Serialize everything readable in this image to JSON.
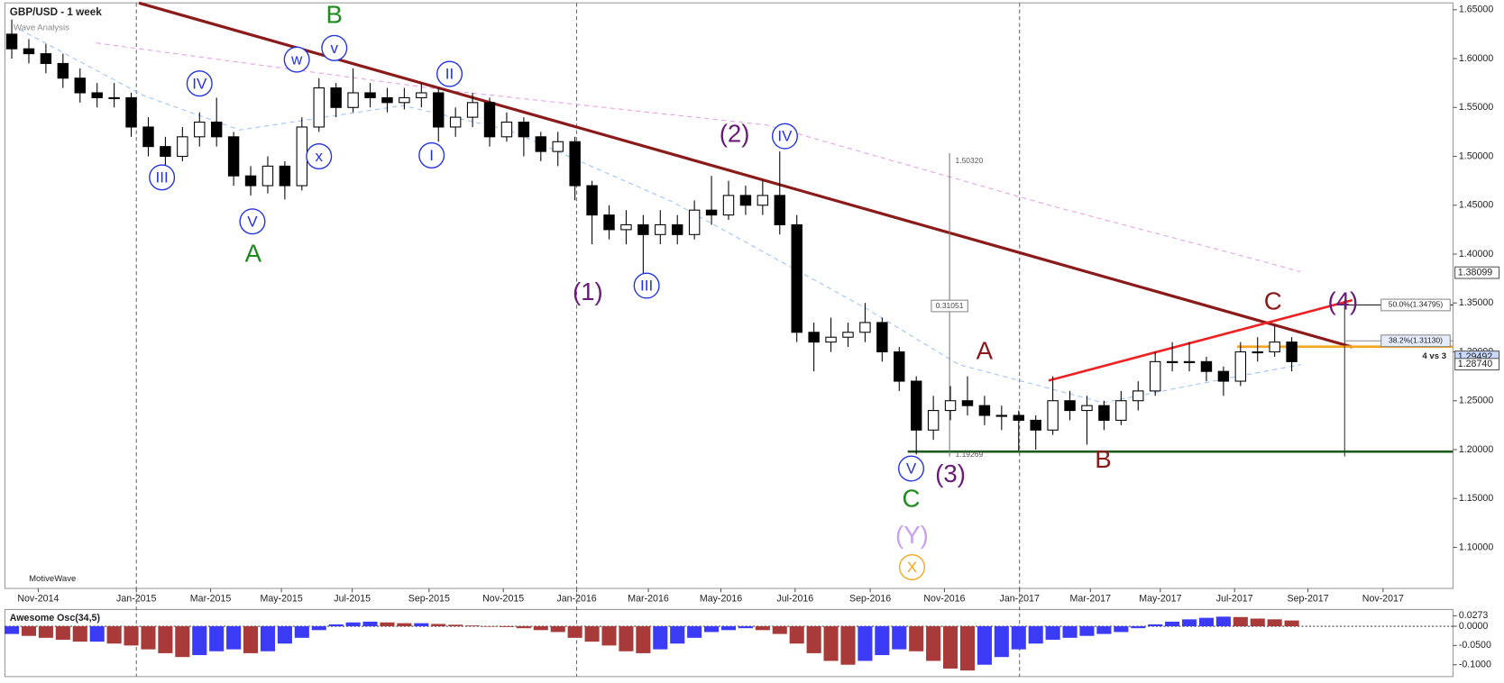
{
  "chart_data": {
    "type": "candlestick",
    "title": "GBP/USD - 1 week",
    "subtitle": "Wave Analysis",
    "watermark": "MotiveWave",
    "x": [
      0,
      2,
      4,
      6,
      8,
      10,
      12,
      14,
      16,
      18,
      20,
      22,
      24,
      26,
      28,
      30,
      32,
      34,
      36,
      38,
      40,
      42,
      44,
      46,
      48,
      50,
      52,
      54,
      56,
      58,
      60,
      62,
      64,
      66,
      68,
      70,
      72,
      74,
      76,
      78,
      80,
      82,
      84,
      86,
      88,
      90,
      92,
      94,
      96,
      98,
      100,
      102,
      104,
      106,
      108,
      110,
      112,
      114,
      116,
      118,
      120,
      122,
      124,
      126,
      128,
      130,
      132,
      134,
      136,
      138,
      140,
      142,
      144,
      146,
      148,
      150
    ],
    "open": [
      1.625,
      1.61,
      1.605,
      1.595,
      1.58,
      1.565,
      1.56,
      1.56,
      1.53,
      1.51,
      1.5,
      1.52,
      1.535,
      1.52,
      1.48,
      1.47,
      1.49,
      1.47,
      1.53,
      1.57,
      1.55,
      1.565,
      1.56,
      1.555,
      1.56,
      1.565,
      1.53,
      1.54,
      1.555,
      1.52,
      1.535,
      1.52,
      1.505,
      1.515,
      1.47,
      1.44,
      1.425,
      1.43,
      1.42,
      1.43,
      1.42,
      1.445,
      1.44,
      1.46,
      1.45,
      1.46,
      1.43,
      1.32,
      1.31,
      1.315,
      1.32,
      1.33,
      1.3,
      1.27,
      1.22,
      1.24,
      1.25,
      1.245,
      1.235,
      1.235,
      1.23,
      1.22,
      1.25,
      1.24,
      1.245,
      1.23,
      1.25,
      1.26,
      1.29,
      1.29,
      1.29,
      1.28,
      1.27,
      1.3,
      1.3,
      1.31
    ],
    "high": [
      1.64,
      1.62,
      1.615,
      1.605,
      1.59,
      1.575,
      1.575,
      1.565,
      1.54,
      1.52,
      1.53,
      1.545,
      1.56,
      1.525,
      1.49,
      1.5,
      1.495,
      1.54,
      1.58,
      1.575,
      1.59,
      1.575,
      1.57,
      1.57,
      1.575,
      1.57,
      1.55,
      1.565,
      1.56,
      1.545,
      1.54,
      1.525,
      1.525,
      1.52,
      1.475,
      1.45,
      1.445,
      1.44,
      1.445,
      1.44,
      1.455,
      1.48,
      1.475,
      1.47,
      1.475,
      1.505,
      1.44,
      1.33,
      1.335,
      1.33,
      1.35,
      1.335,
      1.305,
      1.275,
      1.255,
      1.265,
      1.275,
      1.255,
      1.245,
      1.24,
      1.235,
      1.275,
      1.26,
      1.255,
      1.25,
      1.26,
      1.27,
      1.3,
      1.31,
      1.31,
      1.295,
      1.285,
      1.31,
      1.315,
      1.327,
      1.315
    ],
    "low": [
      1.6,
      1.595,
      1.585,
      1.57,
      1.555,
      1.55,
      1.55,
      1.52,
      1.5,
      1.488,
      1.495,
      1.51,
      1.51,
      1.47,
      1.46,
      1.462,
      1.456,
      1.465,
      1.525,
      1.54,
      1.545,
      1.55,
      1.545,
      1.548,
      1.55,
      1.515,
      1.52,
      1.53,
      1.51,
      1.515,
      1.5,
      1.495,
      1.49,
      1.455,
      1.41,
      1.415,
      1.41,
      1.38,
      1.41,
      1.41,
      1.415,
      1.43,
      1.435,
      1.44,
      1.44,
      1.42,
      1.31,
      1.28,
      1.3,
      1.305,
      1.31,
      1.29,
      1.26,
      1.195,
      1.21,
      1.23,
      1.235,
      1.225,
      1.22,
      1.199,
      1.2,
      1.215,
      1.23,
      1.205,
      1.22,
      1.225,
      1.24,
      1.255,
      1.28,
      1.28,
      1.27,
      1.255,
      1.265,
      1.29,
      1.295,
      1.28
    ],
    "close": [
      1.61,
      1.605,
      1.595,
      1.58,
      1.565,
      1.56,
      1.56,
      1.53,
      1.51,
      1.5,
      1.52,
      1.535,
      1.52,
      1.48,
      1.47,
      1.49,
      1.47,
      1.53,
      1.57,
      1.55,
      1.565,
      1.56,
      1.555,
      1.56,
      1.565,
      1.53,
      1.54,
      1.555,
      1.52,
      1.535,
      1.52,
      1.505,
      1.515,
      1.47,
      1.44,
      1.425,
      1.43,
      1.42,
      1.43,
      1.42,
      1.445,
      1.44,
      1.46,
      1.45,
      1.46,
      1.43,
      1.32,
      1.31,
      1.315,
      1.32,
      1.33,
      1.3,
      1.27,
      1.22,
      1.24,
      1.25,
      1.245,
      1.235,
      1.235,
      1.23,
      1.22,
      1.25,
      1.24,
      1.245,
      1.23,
      1.25,
      1.26,
      1.29,
      1.29,
      1.29,
      1.28,
      1.27,
      1.3,
      1.3,
      1.31,
      1.29
    ],
    "up_color": "#ffffff",
    "down_color": "#000000",
    "xlim": [
      -0.8,
      168.9
    ],
    "xticks": [
      {
        "value": 3.1,
        "label": "Nov-2014"
      },
      {
        "value": 14.6,
        "label": "Jan-2015"
      },
      {
        "value": 23.3,
        "label": "Mar-2015"
      },
      {
        "value": 31.6,
        "label": "May-2015"
      },
      {
        "value": 39.9,
        "label": "Jul-2015"
      },
      {
        "value": 48.9,
        "label": "Sep-2015"
      },
      {
        "value": 57.6,
        "label": "Nov-2015"
      },
      {
        "value": 66.2,
        "label": "Jan-2016"
      },
      {
        "value": 74.6,
        "label": "Mar-2016"
      },
      {
        "value": 83.1,
        "label": "May-2016"
      },
      {
        "value": 91.8,
        "label": "Jul-2016"
      },
      {
        "value": 100.6,
        "label": "Sep-2016"
      },
      {
        "value": 109.3,
        "label": "Nov-2016"
      },
      {
        "value": 118.1,
        "label": "Jan-2017"
      },
      {
        "value": 126.4,
        "label": "Mar-2017"
      },
      {
        "value": 134.6,
        "label": "May-2017"
      },
      {
        "value": 143.3,
        "label": "Jul-2017"
      },
      {
        "value": 151.9,
        "label": "Sep-2017"
      },
      {
        "value": 160.7,
        "label": "Nov-2017"
      }
    ],
    "ylim": [
      1.058,
      1.657
    ],
    "yticks": [
      {
        "value": 1.65,
        "label": "1.65000"
      },
      {
        "value": 1.6,
        "label": "1.60000"
      },
      {
        "value": 1.55,
        "label": "1.55000"
      },
      {
        "value": 1.5,
        "label": "1.50000"
      },
      {
        "value": 1.45,
        "label": "1.45000"
      },
      {
        "value": 1.4,
        "label": "1.40000"
      },
      {
        "value": 1.35,
        "label": "1.35000"
      },
      {
        "value": 1.3,
        "label": "1.30000"
      },
      {
        "value": 1.25,
        "label": "1.25000"
      },
      {
        "value": 1.2,
        "label": "1.20000"
      },
      {
        "value": 1.15,
        "label": "1.15000"
      },
      {
        "value": 1.1,
        "label": "1.10000"
      }
    ],
    "overlays": [
      {
        "color": "#e7a0e7",
        "width": 1,
        "dash": true,
        "x": [
          9.9,
          51.5,
          88.5,
          122,
          144.7,
          151
        ],
        "y": [
          1.616,
          1.567,
          1.532,
          1.449,
          1.397,
          1.382
        ]
      },
      {
        "color": "#9cc3f5",
        "width": 1,
        "dash": true,
        "x": [
          0.9,
          15.5,
          26.7,
          45.8,
          58.2,
          77.3,
          99.8,
          111,
          127.9,
          142.5,
          151.1
        ],
        "y": [
          1.63,
          1.562,
          1.527,
          1.552,
          1.527,
          1.454,
          1.346,
          1.287,
          1.248,
          1.273,
          1.287
        ]
      },
      {
        "color": "#8b1a1a",
        "width": 3,
        "dash": false,
        "x": [
          14.9,
          157.1
        ],
        "y": [
          1.6569,
          1.3049
        ]
      },
      {
        "color": "#ee2222",
        "width": 2.5,
        "dash": false,
        "x": [
          121.5,
          157.1
        ],
        "y": [
          1.2706,
          1.3529
        ]
      },
      {
        "color": "#1e5a1e",
        "width": 2.5,
        "dash": false,
        "x": [
          105,
          168.9
        ],
        "y": [
          1.198,
          1.198
        ]
      },
      {
        "color": "#f5a623",
        "width": 2.5,
        "dash": false,
        "x": [
          143.6,
          168.9
        ],
        "y": [
          1.3053,
          1.3053
        ]
      },
      {
        "color": "#333333",
        "width": 1,
        "dash": false,
        "x": [
          156.2,
          156.2
        ],
        "y": [
          1.3529,
          1.1929
        ]
      },
      {
        "color": "#777777",
        "width": 1,
        "dash": false,
        "x": [
          109.9,
          109.9
        ],
        "y": [
          1.5032,
          1.1927
        ]
      }
    ],
    "measure": {
      "x": 109.9,
      "top": {
        "value": 1.5032,
        "label": "1.50320"
      },
      "bottom": 1.19269,
      "range": 0.31051
    },
    "fib_levels": [
      {
        "value": 1.34795,
        "label": "50.0%(1.34795)"
      },
      {
        "value": 1.3113,
        "label": "38.2%(1.31130)"
      }
    ],
    "fib_x": 156.2,
    "note": "4 vs 3",
    "price_markers": [
      {
        "value": 1.38099,
        "label": "1.38099",
        "color": "#ffffff"
      },
      {
        "value": 1.29492,
        "label": "1.29492",
        "color": "#c9d9ff"
      },
      {
        "value": 1.2874,
        "label": "1.28740",
        "color": "#ffffff"
      }
    ],
    "annotations": [
      {
        "text": "B",
        "x": 37.8,
        "y": 1.6431,
        "color": "#1f8a1f",
        "style": "plain"
      },
      {
        "text": "A",
        "x": 28.3,
        "y": 1.3991,
        "color": "#1f8a1f",
        "style": "plain"
      },
      {
        "text": "C",
        "x": 105.4,
        "y": 1.1482,
        "color": "#1f8a1f",
        "style": "plain"
      },
      {
        "text": "III",
        "x": 17.6,
        "y": 1.4785,
        "color": "#2233dd",
        "style": "circle"
      },
      {
        "text": "IV",
        "x": 22,
        "y": 1.5745,
        "color": "#2233dd",
        "style": "circle"
      },
      {
        "text": "V",
        "x": 28.2,
        "y": 1.4334,
        "color": "#2233dd",
        "style": "circle"
      },
      {
        "text": "w",
        "x": 33.4,
        "y": 1.599,
        "color": "#2233dd",
        "style": "circle"
      },
      {
        "text": "v",
        "x": 37.8,
        "y": 1.6108,
        "color": "#2233dd",
        "style": "circle"
      },
      {
        "text": "x",
        "x": 36,
        "y": 1.5,
        "color": "#2233dd",
        "style": "circle"
      },
      {
        "text": "II",
        "x": 51.3,
        "y": 1.5843,
        "color": "#2233dd",
        "style": "circle"
      },
      {
        "text": "I",
        "x": 49.2,
        "y": 1.501,
        "color": "#2233dd",
        "style": "circle"
      },
      {
        "text": "(1)",
        "x": 67.5,
        "y": 1.3598,
        "color": "#6a1b7a",
        "style": "plain"
      },
      {
        "text": "(2)",
        "x": 84.7,
        "y": 1.5216,
        "color": "#6a1b7a",
        "style": "plain"
      },
      {
        "text": "III",
        "x": 74.4,
        "y": 1.3677,
        "color": "#2233dd",
        "style": "circle"
      },
      {
        "text": "IV",
        "x": 90.6,
        "y": 1.5206,
        "color": "#2233dd",
        "style": "circle"
      },
      {
        "text": "V",
        "x": 105.4,
        "y": 1.1806,
        "color": "#2233dd",
        "style": "circle"
      },
      {
        "text": "(3)",
        "x": 110,
        "y": 1.1737,
        "color": "#6a1b7a",
        "style": "plain"
      },
      {
        "text": "(Y)",
        "x": 105.5,
        "y": 1.111,
        "color": "#c9a0f0",
        "style": "plain"
      },
      {
        "text": "X",
        "x": 105.5,
        "y": 1.0797,
        "color": "#f5a623",
        "style": "circle"
      },
      {
        "text": "A",
        "x": 114,
        "y": 1.2992,
        "color": "#8b1a1a",
        "style": "plain"
      },
      {
        "text": "B",
        "x": 127.9,
        "y": 1.1884,
        "color": "#8b1a1a",
        "style": "plain"
      },
      {
        "text": "C",
        "x": 147.8,
        "y": 1.35,
        "color": "#8b1a1a",
        "style": "plain"
      },
      {
        "text": "(4)",
        "x": 156,
        "y": 1.35,
        "color": "#6a1b7a",
        "style": "plain"
      }
    ],
    "oscillator": {
      "title": "Awesome Osc(34,5)",
      "up_color": "#3b3bf5",
      "down_color": "#a83a3a",
      "values": [
        -0.02,
        -0.025,
        -0.03,
        -0.035,
        -0.04,
        -0.04,
        -0.045,
        -0.05,
        -0.06,
        -0.07,
        -0.08,
        -0.075,
        -0.065,
        -0.06,
        -0.07,
        -0.065,
        -0.045,
        -0.03,
        -0.01,
        0.005,
        0.01,
        0.012,
        0.01,
        0.008,
        0.008,
        0.006,
        0.004,
        0.002,
        0.0,
        -0.002,
        -0.005,
        -0.01,
        -0.015,
        -0.03,
        -0.04,
        -0.05,
        -0.065,
        -0.07,
        -0.06,
        -0.045,
        -0.03,
        -0.015,
        -0.01,
        -0.005,
        -0.01,
        -0.02,
        -0.045,
        -0.07,
        -0.09,
        -0.1,
        -0.09,
        -0.075,
        -0.06,
        -0.065,
        -0.09,
        -0.11,
        -0.115,
        -0.1,
        -0.08,
        -0.06,
        -0.045,
        -0.035,
        -0.03,
        -0.025,
        -0.02,
        -0.015,
        -0.005,
        0.005,
        0.012,
        0.018,
        0.022,
        0.025,
        0.024,
        0.02,
        0.018,
        0.015
      ],
      "ylim": [
        -0.1308,
        0.0436
      ],
      "yticks": [
        {
          "value": 0.0273,
          "label": "0.0273"
        },
        {
          "value": 0,
          "label": "0.0000"
        },
        {
          "value": -0.05,
          "label": "-0.0500"
        },
        {
          "value": -0.1,
          "label": "-0.1000"
        }
      ]
    }
  }
}
